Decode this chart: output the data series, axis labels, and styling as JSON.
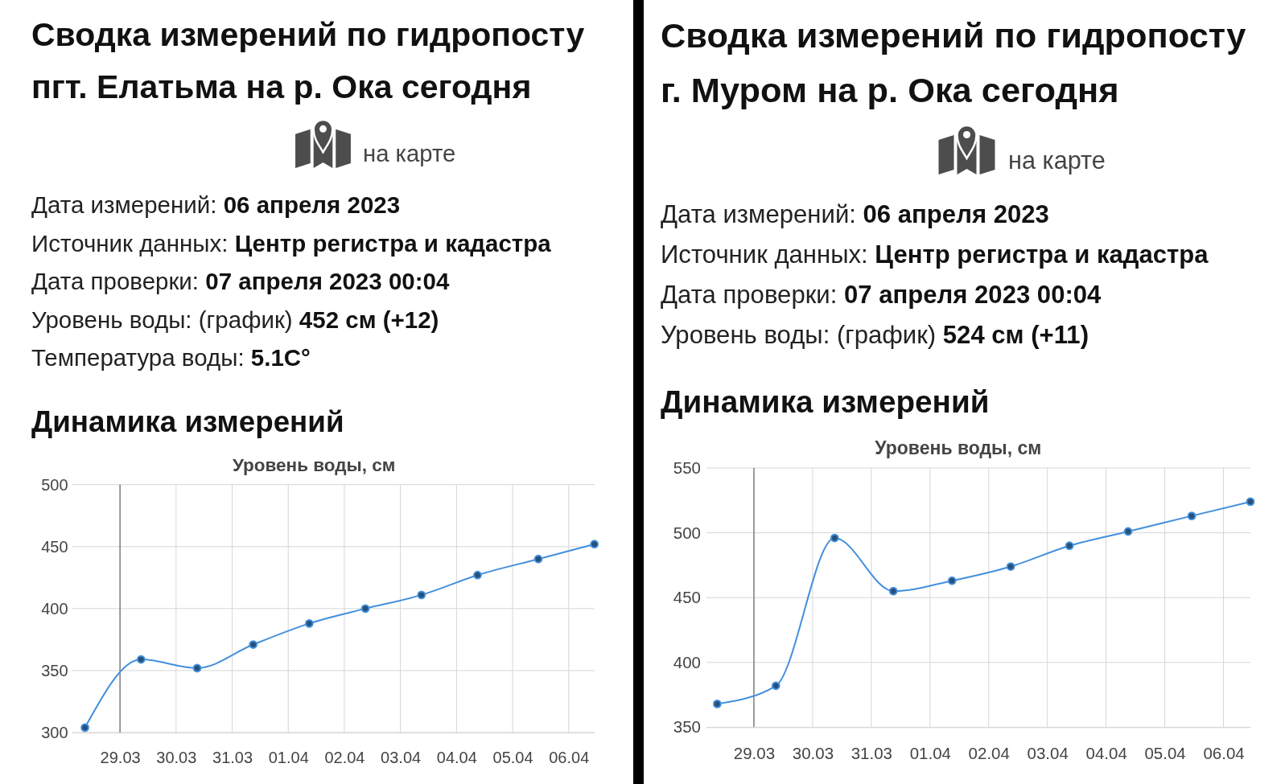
{
  "chart_data": [
    {
      "type": "other",
      "title": "Сводка измерений по гидропосту пгт. Елатьма на р. Ока сегодня",
      "annotations": [
        "на карте",
        "Дата измерений:",
        "06 апреля 2023",
        "Источник данных:",
        "Центр регистра и кадастра",
        "Дата проверки:",
        "07 апреля 2023 00:04",
        "Уровень воды: (график)",
        "452 см (+12)",
        "Температура воды:",
        "5.1C°"
      ]
    },
    {
      "type": "line",
      "title": "Динамика измерений",
      "subtitle": "Уровень воды, см",
      "x": [
        "2023-03-28T09:00",
        "2023-03-29T09:00",
        "2023-03-30T09:00",
        "2023-03-31T09:00",
        "2023-04-01T09:00",
        "2023-04-02T09:00",
        "2023-04-03T09:00",
        "2023-04-04T09:00",
        "2023-04-05T11:00",
        "2023-04-06T11:00"
      ],
      "values": [
        304,
        359,
        352,
        371,
        388,
        400,
        411,
        427,
        440,
        452
      ],
      "color": "#4390dc",
      "marker": "circle",
      "line_style": "solid",
      "xlim": [
        "2023-03-28T03:30",
        "2023-04-06T11:00"
      ],
      "xticks": [
        {
          "value": "2023-03-29",
          "label": "29.03"
        },
        {
          "value": "2023-03-30",
          "label": "30.03"
        },
        {
          "value": "2023-03-31",
          "label": "31.03"
        },
        {
          "value": "2023-04-01",
          "label": "01.04"
        },
        {
          "value": "2023-04-02",
          "label": "02.04"
        },
        {
          "value": "2023-04-03",
          "label": "03.04"
        },
        {
          "value": "2023-04-04",
          "label": "04.04"
        },
        {
          "value": "2023-04-05",
          "label": "05.04"
        },
        {
          "value": "2023-04-06",
          "label": "06.04"
        }
      ],
      "ylim": [
        300,
        500
      ],
      "yticks": [
        300,
        350,
        400,
        450,
        500
      ],
      "grid": true,
      "ref_lines": [
        {
          "axis": "x",
          "value": "2023-03-29",
          "color": "#666666"
        }
      ]
    },
    {
      "type": "other",
      "title": "Сводка измерений по гидропосту г. Муром на р. Ока сегодня",
      "annotations": [
        "на карте",
        "Дата измерений:",
        "06 апреля 2023",
        "Источник данных:",
        "Центр регистра и кадастра",
        "Дата проверки:",
        "07 апреля 2023 00:04",
        "Уровень воды: (график)",
        "524 см (+11)"
      ]
    },
    {
      "type": "line",
      "title": "Динамика измерений",
      "subtitle": "Уровень воды, см",
      "x": [
        "2023-03-28T09:00",
        "2023-03-29T09:00",
        "2023-03-30T09:00",
        "2023-03-31T09:00",
        "2023-04-01T09:00",
        "2023-04-02T09:00",
        "2023-04-03T09:00",
        "2023-04-04T09:00",
        "2023-04-05T11:00",
        "2023-04-06T11:00"
      ],
      "values": [
        368,
        382,
        496,
        455,
        463,
        474,
        490,
        501,
        513,
        524
      ],
      "color": "#4390dc",
      "marker": "circle",
      "line_style": "solid",
      "xlim": [
        "2023-03-28T04:30",
        "2023-04-06T11:00"
      ],
      "xticks": [
        {
          "value": "2023-03-29",
          "label": "29.03"
        },
        {
          "value": "2023-03-30",
          "label": "30.03"
        },
        {
          "value": "2023-03-31",
          "label": "31.03"
        },
        {
          "value": "2023-04-01",
          "label": "01.04"
        },
        {
          "value": "2023-04-02",
          "label": "02.04"
        },
        {
          "value": "2023-04-03",
          "label": "03.04"
        },
        {
          "value": "2023-04-04",
          "label": "04.04"
        },
        {
          "value": "2023-04-05",
          "label": "05.04"
        },
        {
          "value": "2023-04-06",
          "label": "06.04"
        }
      ],
      "ylim": [
        350,
        550
      ],
      "yticks": [
        350,
        400,
        450,
        500,
        550
      ],
      "grid": true,
      "ref_lines": [
        {
          "axis": "x",
          "value": "2023-03-29",
          "color": "#666666"
        }
      ]
    }
  ]
}
